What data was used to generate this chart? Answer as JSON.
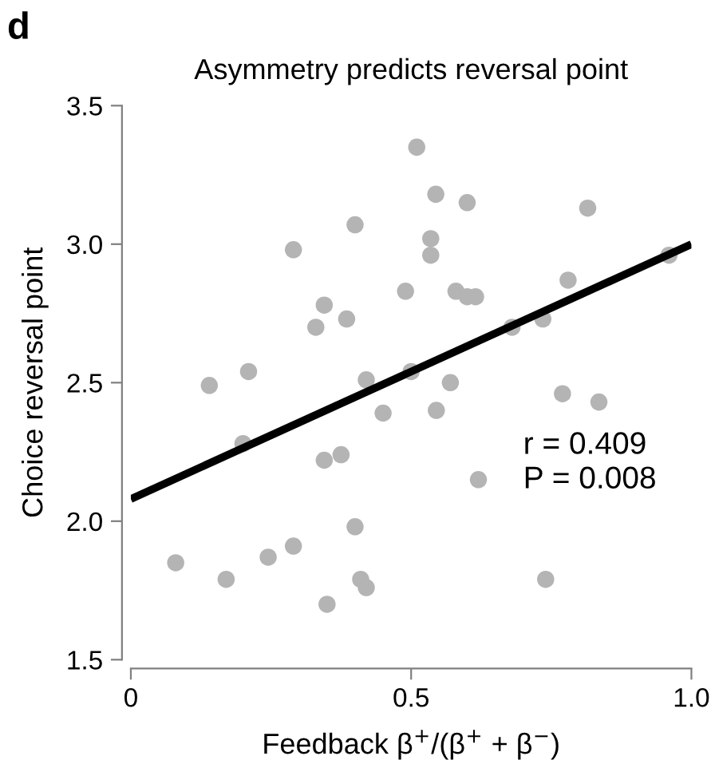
{
  "chart_data": {
    "type": "scatter",
    "title": "Asymmetry predicts reversal point",
    "xlabel": "Feedback β$^{+}$/(β$^{+}$ + β$^{−}$)",
    "ylabel": "Choice reversal point",
    "annotations": [
      "d",
      "r = 0.409",
      "P = 0.008"
    ],
    "series": [
      {
        "color": "#b4b4b4",
        "marker": "circle",
        "x": [
          0.51,
          0.544,
          0.6,
          0.815,
          0.4,
          0.29,
          0.535,
          0.535,
          0.49,
          0.58,
          0.6,
          0.615,
          0.345,
          0.385,
          0.33,
          0.78,
          0.68,
          0.735,
          0.96,
          0.14,
          0.21,
          0.42,
          0.5,
          0.57,
          0.45,
          0.2,
          0.345,
          0.375,
          0.4,
          0.29,
          0.245,
          0.08,
          0.17,
          0.41,
          0.42,
          0.35,
          0.545,
          0.77,
          0.835,
          0.62,
          0.74
        ],
        "values": [
          3.35,
          3.18,
          3.15,
          3.13,
          3.07,
          2.98,
          3.02,
          2.96,
          2.83,
          2.83,
          2.81,
          2.81,
          2.78,
          2.73,
          2.7,
          2.87,
          2.7,
          2.73,
          2.96,
          2.49,
          2.54,
          2.51,
          2.54,
          2.5,
          2.39,
          2.28,
          2.22,
          2.24,
          1.98,
          1.91,
          1.87,
          1.85,
          1.79,
          1.79,
          1.76,
          1.7,
          2.4,
          2.46,
          2.43,
          2.15,
          1.79
        ]
      },
      {
        "type": "line",
        "color": "#000000",
        "x": [
          0,
          1.0
        ],
        "values": [
          2.08,
          3.0
        ]
      }
    ],
    "xlim": [
      0,
      1.0
    ],
    "ylim": [
      1.5,
      3.5
    ],
    "xticks": [
      0,
      0.5,
      {
        "value": 1,
        "label": "1.0"
      }
    ],
    "yticks": [
      1.5,
      {
        "value": 2,
        "label": "2.0"
      },
      2.5,
      {
        "value": 3,
        "label": "3.0"
      },
      3.5
    ],
    "grid": false,
    "legend": false
  }
}
